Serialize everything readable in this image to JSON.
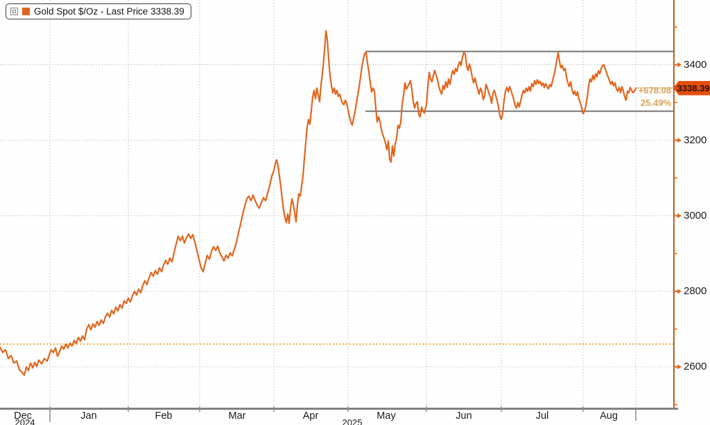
{
  "legend": {
    "label": "Gold Spot $/Oz - Last Price 3338.39"
  },
  "last_price_badge": {
    "value": "3338.39",
    "color": "#e2500e"
  },
  "change": {
    "absolute": "+678.08",
    "percent": "25.49%",
    "color": "#d9a258"
  },
  "chart_data": {
    "type": "line",
    "title": "Gold Spot $/Oz - Last Price 3338.39",
    "series_name": "Gold Spot $/Oz",
    "line_color": "#e0661e",
    "axis_color": "#b4621f",
    "grid_color": "#9e9e9e",
    "box_color": "#737373",
    "reference_line": {
      "value": 2660.31,
      "style": "dotted",
      "color": "#f09a18"
    },
    "range_box": {
      "top": 3435,
      "bottom": 3277
    },
    "last_price": 3338.39,
    "ylim": [
      2490,
      3572
    ],
    "y_ticks": [
      2600,
      2800,
      3000,
      3200,
      3400
    ],
    "y_minor_ticks": [
      2500,
      2700,
      2900,
      3100,
      3300,
      3500
    ],
    "x_tick_labels": [
      "Dec",
      "Jan",
      "Feb",
      "Mar",
      "Apr",
      "May",
      "Jun",
      "Jul",
      "Aug"
    ],
    "year_labels": [
      "2024",
      "2025"
    ],
    "grid": true,
    "legend_position": "top-left",
    "points": [
      [
        0,
        2652
      ],
      [
        4,
        2638
      ],
      [
        8,
        2645
      ],
      [
        12,
        2622
      ],
      [
        16,
        2630
      ],
      [
        20,
        2610
      ],
      [
        24,
        2616
      ],
      [
        28,
        2592
      ],
      [
        32,
        2585
      ],
      [
        35,
        2578
      ],
      [
        38,
        2600
      ],
      [
        41,
        2590
      ],
      [
        44,
        2610
      ],
      [
        47,
        2597
      ],
      [
        50,
        2612
      ],
      [
        53,
        2601
      ],
      [
        56,
        2618
      ],
      [
        60,
        2608
      ],
      [
        64,
        2622
      ],
      [
        68,
        2615
      ],
      [
        71,
        2632
      ],
      [
        74,
        2645
      ],
      [
        77,
        2638
      ],
      [
        80,
        2650
      ],
      [
        83,
        2628
      ],
      [
        86,
        2640
      ],
      [
        89,
        2655
      ],
      [
        92,
        2647
      ],
      [
        95,
        2660
      ],
      [
        98,
        2650
      ],
      [
        101,
        2663
      ],
      [
        104,
        2655
      ],
      [
        107,
        2670
      ],
      [
        110,
        2662
      ],
      [
        113,
        2678
      ],
      [
        116,
        2668
      ],
      [
        119,
        2682
      ],
      [
        122,
        2672
      ],
      [
        125,
        2700
      ],
      [
        128,
        2712
      ],
      [
        131,
        2698
      ],
      [
        134,
        2714
      ],
      [
        137,
        2705
      ],
      [
        140,
        2720
      ],
      [
        143,
        2710
      ],
      [
        146,
        2724
      ],
      [
        149,
        2715
      ],
      [
        152,
        2732
      ],
      [
        155,
        2742
      ],
      [
        158,
        2732
      ],
      [
        161,
        2750
      ],
      [
        164,
        2740
      ],
      [
        167,
        2758
      ],
      [
        170,
        2748
      ],
      [
        173,
        2765
      ],
      [
        176,
        2755
      ],
      [
        179,
        2775
      ],
      [
        182,
        2768
      ],
      [
        185,
        2782
      ],
      [
        188,
        2772
      ],
      [
        191,
        2788
      ],
      [
        194,
        2800
      ],
      [
        197,
        2790
      ],
      [
        200,
        2806
      ],
      [
        203,
        2796
      ],
      [
        206,
        2816
      ],
      [
        209,
        2828
      ],
      [
        212,
        2818
      ],
      [
        215,
        2836
      ],
      [
        218,
        2850
      ],
      [
        221,
        2840
      ],
      [
        224,
        2855
      ],
      [
        227,
        2845
      ],
      [
        230,
        2862
      ],
      [
        233,
        2852
      ],
      [
        236,
        2870
      ],
      [
        239,
        2882
      ],
      [
        242,
        2872
      ],
      [
        245,
        2888
      ],
      [
        248,
        2878
      ],
      [
        251,
        2902
      ],
      [
        254,
        2925
      ],
      [
        257,
        2946
      ],
      [
        260,
        2934
      ],
      [
        263,
        2946
      ],
      [
        266,
        2928
      ],
      [
        269,
        2942
      ],
      [
        272,
        2952
      ],
      [
        275,
        2940
      ],
      [
        278,
        2950
      ],
      [
        281,
        2930
      ],
      [
        284,
        2908
      ],
      [
        287,
        2885
      ],
      [
        290,
        2862
      ],
      [
        293,
        2852
      ],
      [
        296,
        2875
      ],
      [
        299,
        2895
      ],
      [
        302,
        2885
      ],
      [
        305,
        2906
      ],
      [
        308,
        2918
      ],
      [
        311,
        2908
      ],
      [
        314,
        2920
      ],
      [
        317,
        2902
      ],
      [
        320,
        2892
      ],
      [
        323,
        2880
      ],
      [
        326,
        2896
      ],
      [
        329,
        2888
      ],
      [
        332,
        2902
      ],
      [
        335,
        2894
      ],
      [
        338,
        2912
      ],
      [
        341,
        2930
      ],
      [
        344,
        2955
      ],
      [
        347,
        2978
      ],
      [
        350,
        3005
      ],
      [
        353,
        3025
      ],
      [
        356,
        3045
      ],
      [
        359,
        3052
      ],
      [
        362,
        3040
      ],
      [
        365,
        3055
      ],
      [
        368,
        3040
      ],
      [
        371,
        3028
      ],
      [
        374,
        3020
      ],
      [
        377,
        3035
      ],
      [
        380,
        3048
      ],
      [
        383,
        3040
      ],
      [
        386,
        3060
      ],
      [
        389,
        3080
      ],
      [
        392,
        3105
      ],
      [
        395,
        3120
      ],
      [
        397,
        3138
      ],
      [
        399,
        3148
      ],
      [
        401,
        3132
      ],
      [
        403,
        3105
      ],
      [
        405,
        3078
      ],
      [
        407,
        3045
      ],
      [
        409,
        3015
      ],
      [
        411,
        2995
      ],
      [
        413,
        2982
      ],
      [
        415,
        3005
      ],
      [
        417,
        2980
      ],
      [
        419,
        3018
      ],
      [
        421,
        3045
      ],
      [
        423,
        3030
      ],
      [
        425,
        3008
      ],
      [
        427,
        2984
      ],
      [
        429,
        3030
      ],
      [
        431,
        3058
      ],
      [
        433,
        3052
      ],
      [
        435,
        3078
      ],
      [
        437,
        3105
      ],
      [
        439,
        3152
      ],
      [
        441,
        3195
      ],
      [
        443,
        3235
      ],
      [
        445,
        3255
      ],
      [
        447,
        3242
      ],
      [
        449,
        3280
      ],
      [
        451,
        3315
      ],
      [
        453,
        3332
      ],
      [
        455,
        3310
      ],
      [
        457,
        3338
      ],
      [
        459,
        3320
      ],
      [
        461,
        3302
      ],
      [
        463,
        3348
      ],
      [
        465,
        3375
      ],
      [
        467,
        3415
      ],
      [
        469,
        3462
      ],
      [
        470,
        3490
      ],
      [
        472,
        3468
      ],
      [
        474,
        3415
      ],
      [
        476,
        3372
      ],
      [
        478,
        3345
      ],
      [
        480,
        3325
      ],
      [
        482,
        3338
      ],
      [
        484,
        3322
      ],
      [
        486,
        3332
      ],
      [
        488,
        3316
      ],
      [
        490,
        3322
      ],
      [
        492,
        3308
      ],
      [
        494,
        3298
      ],
      [
        496,
        3294
      ],
      [
        498,
        3306
      ],
      [
        500,
        3298
      ],
      [
        502,
        3280
      ],
      [
        504,
        3262
      ],
      [
        506,
        3248
      ],
      [
        508,
        3240
      ],
      [
        510,
        3258
      ],
      [
        512,
        3275
      ],
      [
        514,
        3298
      ],
      [
        516,
        3320
      ],
      [
        518,
        3342
      ],
      [
        520,
        3368
      ],
      [
        522,
        3395
      ],
      [
        524,
        3415
      ],
      [
        526,
        3430
      ],
      [
        528,
        3432
      ],
      [
        530,
        3405
      ],
      [
        532,
        3382
      ],
      [
        534,
        3352
      ],
      [
        536,
        3328
      ],
      [
        538,
        3338
      ],
      [
        540,
        3330
      ],
      [
        542,
        3285
      ],
      [
        544,
        3248
      ],
      [
        546,
        3262
      ],
      [
        548,
        3250
      ],
      [
        550,
        3228
      ],
      [
        552,
        3215
      ],
      [
        554,
        3205
      ],
      [
        556,
        3192
      ],
      [
        558,
        3175
      ],
      [
        560,
        3198
      ],
      [
        562,
        3150
      ],
      [
        564,
        3142
      ],
      [
        566,
        3185
      ],
      [
        568,
        3158
      ],
      [
        570,
        3190
      ],
      [
        572,
        3205
      ],
      [
        574,
        3240
      ],
      [
        576,
        3232
      ],
      [
        578,
        3248
      ],
      [
        580,
        3295
      ],
      [
        582,
        3318
      ],
      [
        584,
        3352
      ],
      [
        586,
        3335
      ],
      [
        588,
        3342
      ],
      [
        590,
        3350
      ],
      [
        592,
        3358
      ],
      [
        594,
        3335
      ],
      [
        596,
        3302
      ],
      [
        598,
        3285
      ],
      [
        600,
        3298
      ],
      [
        602,
        3302
      ],
      [
        604,
        3268
      ],
      [
        606,
        3262
      ],
      [
        608,
        3288
      ],
      [
        610,
        3278
      ],
      [
        612,
        3272
      ],
      [
        615,
        3295
      ],
      [
        617,
        3340
      ],
      [
        619,
        3380
      ],
      [
        621,
        3362
      ],
      [
        623,
        3355
      ],
      [
        625,
        3372
      ],
      [
        627,
        3385
      ],
      [
        629,
        3372
      ],
      [
        631,
        3360
      ],
      [
        633,
        3342
      ],
      [
        635,
        3330
      ],
      [
        637,
        3322
      ],
      [
        639,
        3345
      ],
      [
        641,
        3335
      ],
      [
        643,
        3355
      ],
      [
        645,
        3340
      ],
      [
        647,
        3362
      ],
      [
        649,
        3348
      ],
      [
        651,
        3370
      ],
      [
        653,
        3385
      ],
      [
        655,
        3375
      ],
      [
        657,
        3390
      ],
      [
        659,
        3382
      ],
      [
        661,
        3398
      ],
      [
        663,
        3408
      ],
      [
        665,
        3398
      ],
      [
        667,
        3420
      ],
      [
        669,
        3433
      ],
      [
        671,
        3428
      ],
      [
        673,
        3398
      ],
      [
        675,
        3385
      ],
      [
        677,
        3402
      ],
      [
        679,
        3388
      ],
      [
        681,
        3368
      ],
      [
        683,
        3352
      ],
      [
        685,
        3365
      ],
      [
        687,
        3348
      ],
      [
        689,
        3335
      ],
      [
        691,
        3322
      ],
      [
        693,
        3338
      ],
      [
        695,
        3328
      ],
      [
        697,
        3308
      ],
      [
        699,
        3318
      ],
      [
        701,
        3348
      ],
      [
        703,
        3338
      ],
      [
        705,
        3325
      ],
      [
        707,
        3315
      ],
      [
        709,
        3298
      ],
      [
        711,
        3325
      ],
      [
        713,
        3332
      ],
      [
        715,
        3318
      ],
      [
        717,
        3305
      ],
      [
        719,
        3288
      ],
      [
        721,
        3265
      ],
      [
        723,
        3255
      ],
      [
        725,
        3272
      ],
      [
        727,
        3305
      ],
      [
        729,
        3330
      ],
      [
        731,
        3340
      ],
      [
        733,
        3328
      ],
      [
        735,
        3342
      ],
      [
        737,
        3332
      ],
      [
        739,
        3320
      ],
      [
        741,
        3308
      ],
      [
        743,
        3292
      ],
      [
        745,
        3285
      ],
      [
        747,
        3300
      ],
      [
        749,
        3288
      ],
      [
        751,
        3305
      ],
      [
        753,
        3320
      ],
      [
        755,
        3332
      ],
      [
        757,
        3325
      ],
      [
        759,
        3338
      ],
      [
        761,
        3330
      ],
      [
        763,
        3342
      ],
      [
        765,
        3330
      ],
      [
        767,
        3350
      ],
      [
        769,
        3342
      ],
      [
        771,
        3358
      ],
      [
        773,
        3348
      ],
      [
        775,
        3360
      ],
      [
        777,
        3350
      ],
      [
        779,
        3356
      ],
      [
        781,
        3345
      ],
      [
        783,
        3352
      ],
      [
        785,
        3340
      ],
      [
        787,
        3350
      ],
      [
        789,
        3342
      ],
      [
        791,
        3336
      ],
      [
        793,
        3348
      ],
      [
        795,
        3342
      ],
      [
        797,
        3358
      ],
      [
        799,
        3372
      ],
      [
        801,
        3390
      ],
      [
        803,
        3412
      ],
      [
        805,
        3432
      ],
      [
        807,
        3408
      ],
      [
        809,
        3392
      ],
      [
        811,
        3398
      ],
      [
        813,
        3385
      ],
      [
        815,
        3390
      ],
      [
        817,
        3368
      ],
      [
        819,
        3352
      ],
      [
        821,
        3342
      ],
      [
        823,
        3355
      ],
      [
        825,
        3335
      ],
      [
        827,
        3322
      ],
      [
        829,
        3330
      ],
      [
        831,
        3318
      ],
      [
        833,
        3328
      ],
      [
        835,
        3308
      ],
      [
        837,
        3300
      ],
      [
        839,
        3285
      ],
      [
        841,
        3270
      ],
      [
        843,
        3278
      ],
      [
        845,
        3292
      ],
      [
        847,
        3315
      ],
      [
        849,
        3345
      ],
      [
        851,
        3362
      ],
      [
        853,
        3355
      ],
      [
        855,
        3372
      ],
      [
        857,
        3360
      ],
      [
        859,
        3376
      ],
      [
        861,
        3368
      ],
      [
        863,
        3384
      ],
      [
        865,
        3376
      ],
      [
        867,
        3390
      ],
      [
        869,
        3398
      ],
      [
        871,
        3400
      ],
      [
        873,
        3388
      ],
      [
        875,
        3378
      ],
      [
        877,
        3368
      ],
      [
        879,
        3358
      ],
      [
        881,
        3348
      ],
      [
        883,
        3356
      ],
      [
        885,
        3344
      ],
      [
        887,
        3352
      ],
      [
        889,
        3336
      ],
      [
        891,
        3330
      ],
      [
        893,
        3340
      ],
      [
        895,
        3326
      ],
      [
        897,
        3342
      ],
      [
        899,
        3330
      ],
      [
        901,
        3315
      ],
      [
        903,
        3306
      ],
      [
        905,
        3330
      ],
      [
        907,
        3326
      ],
      [
        909,
        3340
      ],
      [
        911,
        3332
      ],
      [
        913,
        3326
      ],
      [
        915,
        3330
      ],
      [
        917,
        3338.39
      ]
    ]
  }
}
